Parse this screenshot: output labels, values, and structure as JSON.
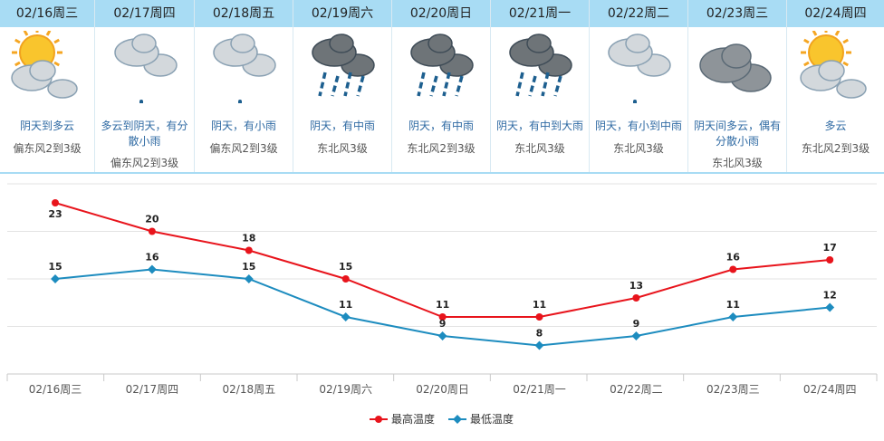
{
  "days": [
    {
      "date": "02/16周三",
      "icon": "sun-cloud-icon",
      "condition": "阴天到多云",
      "wind": "偏东风2到3级"
    },
    {
      "date": "02/17周四",
      "icon": "cloud-light-rain-icon",
      "condition": "多云到阴天，有分散小雨",
      "wind": "偏东风2到3级"
    },
    {
      "date": "02/18周五",
      "icon": "cloud-light-rain-icon",
      "condition": "阴天，有小雨",
      "wind": "偏东风2到3级"
    },
    {
      "date": "02/19周六",
      "icon": "cloud-moderate-rain-icon",
      "condition": "阴天，有中雨",
      "wind": "东北风3级"
    },
    {
      "date": "02/20周日",
      "icon": "cloud-moderate-rain-icon",
      "condition": "阴天，有中雨",
      "wind": "东北风2到3级"
    },
    {
      "date": "02/21周一",
      "icon": "cloud-heavy-rain-icon",
      "condition": "阴天，有中到大雨",
      "wind": "东北风3级"
    },
    {
      "date": "02/22周二",
      "icon": "cloud-light-rain-icon",
      "condition": "阴天，有小到中雨",
      "wind": "东北风3级"
    },
    {
      "date": "02/23周三",
      "icon": "overcast-cloud-icon",
      "condition": "阴天间多云，偶有分散小雨",
      "wind": "东北风3级"
    },
    {
      "date": "02/24周四",
      "icon": "sun-cloud-icon",
      "condition": "多云",
      "wind": "东北风2到3级"
    }
  ],
  "chart_data": {
    "type": "line",
    "categories": [
      "02/16周三",
      "02/17周四",
      "02/18周五",
      "02/19周六",
      "02/20周日",
      "02/21周一",
      "02/22周二",
      "02/23周三",
      "02/24周四"
    ],
    "series": [
      {
        "name": "最高温度",
        "color": "#e8141c",
        "values": [
          23,
          20,
          18,
          15,
          11,
          11,
          13,
          16,
          17
        ]
      },
      {
        "name": "最低温度",
        "color": "#1d8cbf",
        "values": [
          15,
          16,
          15,
          11,
          9,
          8,
          9,
          11,
          12
        ]
      }
    ],
    "ylim": [
      5,
      25
    ],
    "grid": true,
    "legend": "bottom-center"
  }
}
